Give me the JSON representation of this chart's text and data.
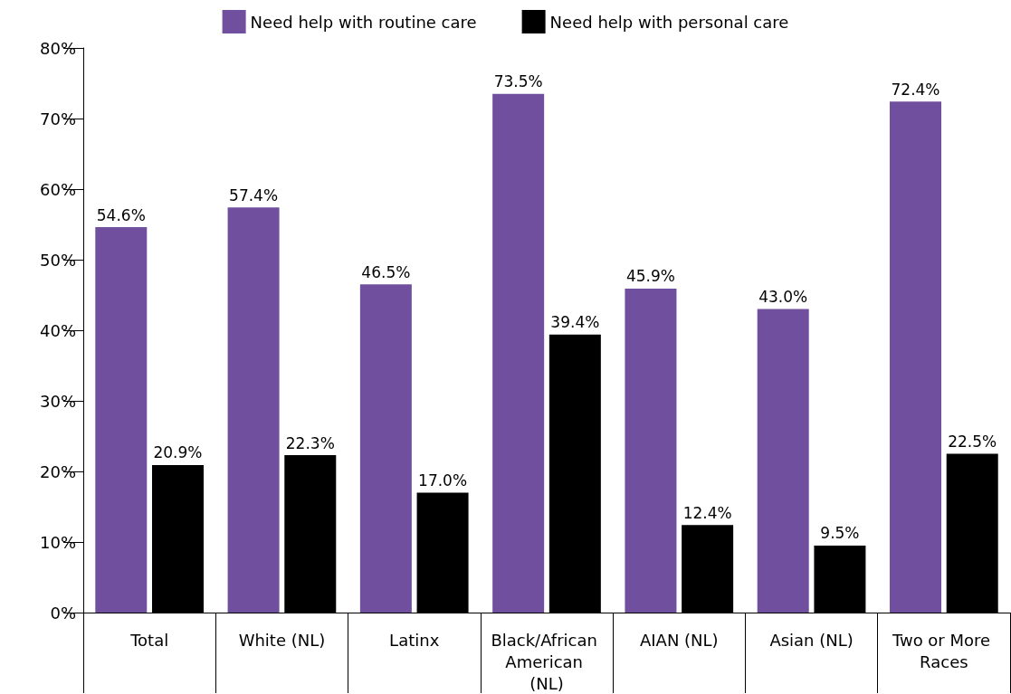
{
  "chart_data": {
    "type": "bar",
    "categories": [
      "Total",
      "White (NL)",
      "Latinx",
      "Black/African American (NL)",
      "AIAN (NL)",
      "Asian (NL)",
      "Two or More Races"
    ],
    "series": [
      {
        "name": "Need help with routine care",
        "color": "#704f9e",
        "values": [
          54.6,
          57.4,
          46.5,
          73.5,
          45.9,
          43.0,
          72.4
        ],
        "value_labels": [
          "54.6%",
          "57.4%",
          "46.5%",
          "73.5%",
          "45.9%",
          "43.0%",
          "72.4%"
        ]
      },
      {
        "name": "Need help with personal care",
        "color": "#000000",
        "values": [
          20.9,
          22.3,
          17.0,
          39.4,
          12.4,
          9.5,
          22.5
        ],
        "value_labels": [
          "20.9%",
          "22.3%",
          "17.0%",
          "39.4%",
          "12.4%",
          "9.5%",
          "22.5%"
        ]
      }
    ],
    "ylim": [
      0,
      80
    ],
    "yticks": [
      {
        "value": 0,
        "label": "0%"
      },
      {
        "value": 10,
        "label": "10%"
      },
      {
        "value": 20,
        "label": "20%"
      },
      {
        "value": 30,
        "label": "30%"
      },
      {
        "value": 40,
        "label": "40%"
      },
      {
        "value": 50,
        "label": "50%"
      },
      {
        "value": 60,
        "label": "60%"
      },
      {
        "value": 70,
        "label": "70%"
      },
      {
        "value": 80,
        "label": "80%"
      }
    ],
    "grid": false,
    "legend": "top"
  }
}
